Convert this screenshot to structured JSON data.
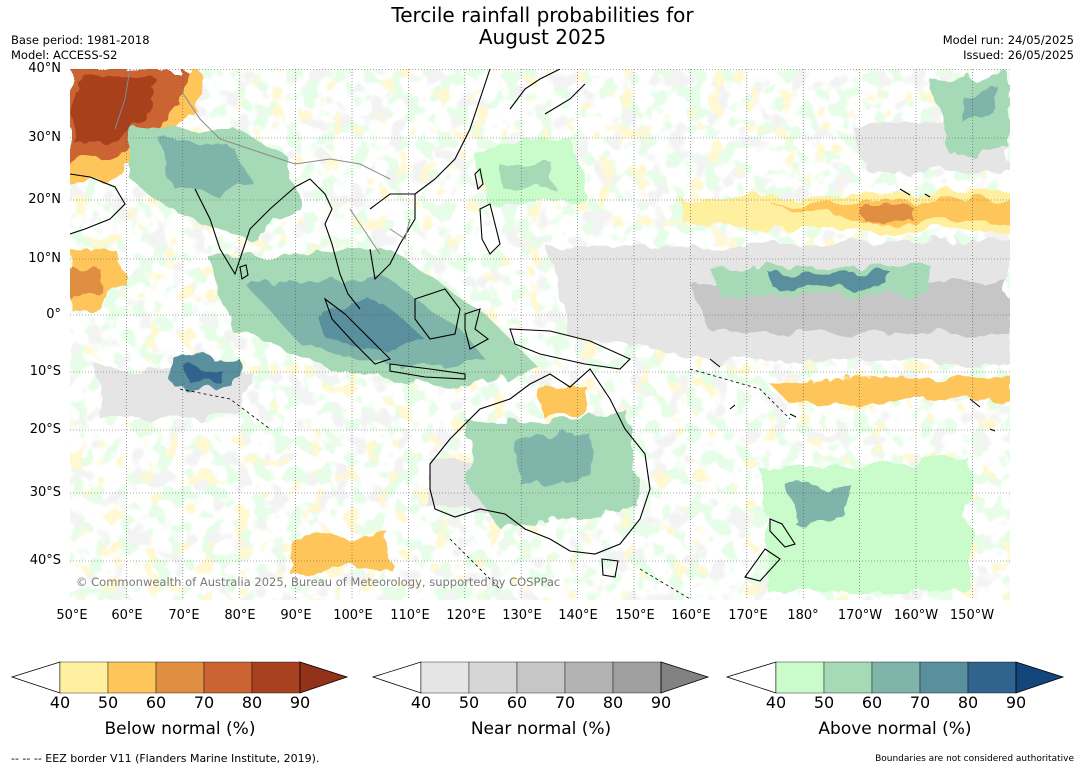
{
  "title_line1": "Tercile rainfall probabilities for",
  "title_line2": "August 2025",
  "meta_left": {
    "base_period": "Base period: 1981-2018",
    "model": "Model: ACCESS-S2"
  },
  "meta_right": {
    "model_run": "Model run: 24/05/2025",
    "issued": "Issued: 26/05/2025"
  },
  "lat_labels": [
    "40°N",
    "30°N",
    "20°N",
    "10°N",
    "0°",
    "10°S",
    "20°S",
    "30°S",
    "40°S"
  ],
  "lon_labels": [
    "50°E",
    "60°E",
    "70°E",
    "80°E",
    "90°E",
    "100°E",
    "110°E",
    "120°E",
    "130°E",
    "140°E",
    "150°E",
    "160°E",
    "170°E",
    "180°",
    "170°W",
    "160°W",
    "150°W"
  ],
  "copyright": "© Commonwealth of Australia 2025, Bureau of Meteorology, supported by COSPPac",
  "colorbars": [
    {
      "label": "Below normal (%)",
      "ticks": [
        "40",
        "50",
        "60",
        "70",
        "80",
        "90"
      ],
      "colors": [
        "#fff0a0",
        "#fec65a",
        "#df8e42",
        "#cb6332",
        "#a8411f"
      ],
      "extend_color": "#923219"
    },
    {
      "label": "Near normal (%)",
      "ticks": [
        "40",
        "50",
        "60",
        "70",
        "80",
        "90"
      ],
      "colors": [
        "#e5e5e5",
        "#d6d6d6",
        "#c6c6c6",
        "#b3b3b3",
        "#9f9f9f"
      ],
      "extend_color": "#828282"
    },
    {
      "label": "Above normal (%)",
      "ticks": [
        "40",
        "50",
        "60",
        "70",
        "80",
        "90"
      ],
      "colors": [
        "#c9fbcb",
        "#a6d9b5",
        "#7fb4aa",
        "#5a8f9d",
        "#31638f"
      ],
      "extend_color": "#13467a"
    }
  ],
  "footer_left": "--  --  -- EEZ border V11 (Flanders Marine Institute, 2019).",
  "footer_right": "Boundaries are not considered authoritative"
}
